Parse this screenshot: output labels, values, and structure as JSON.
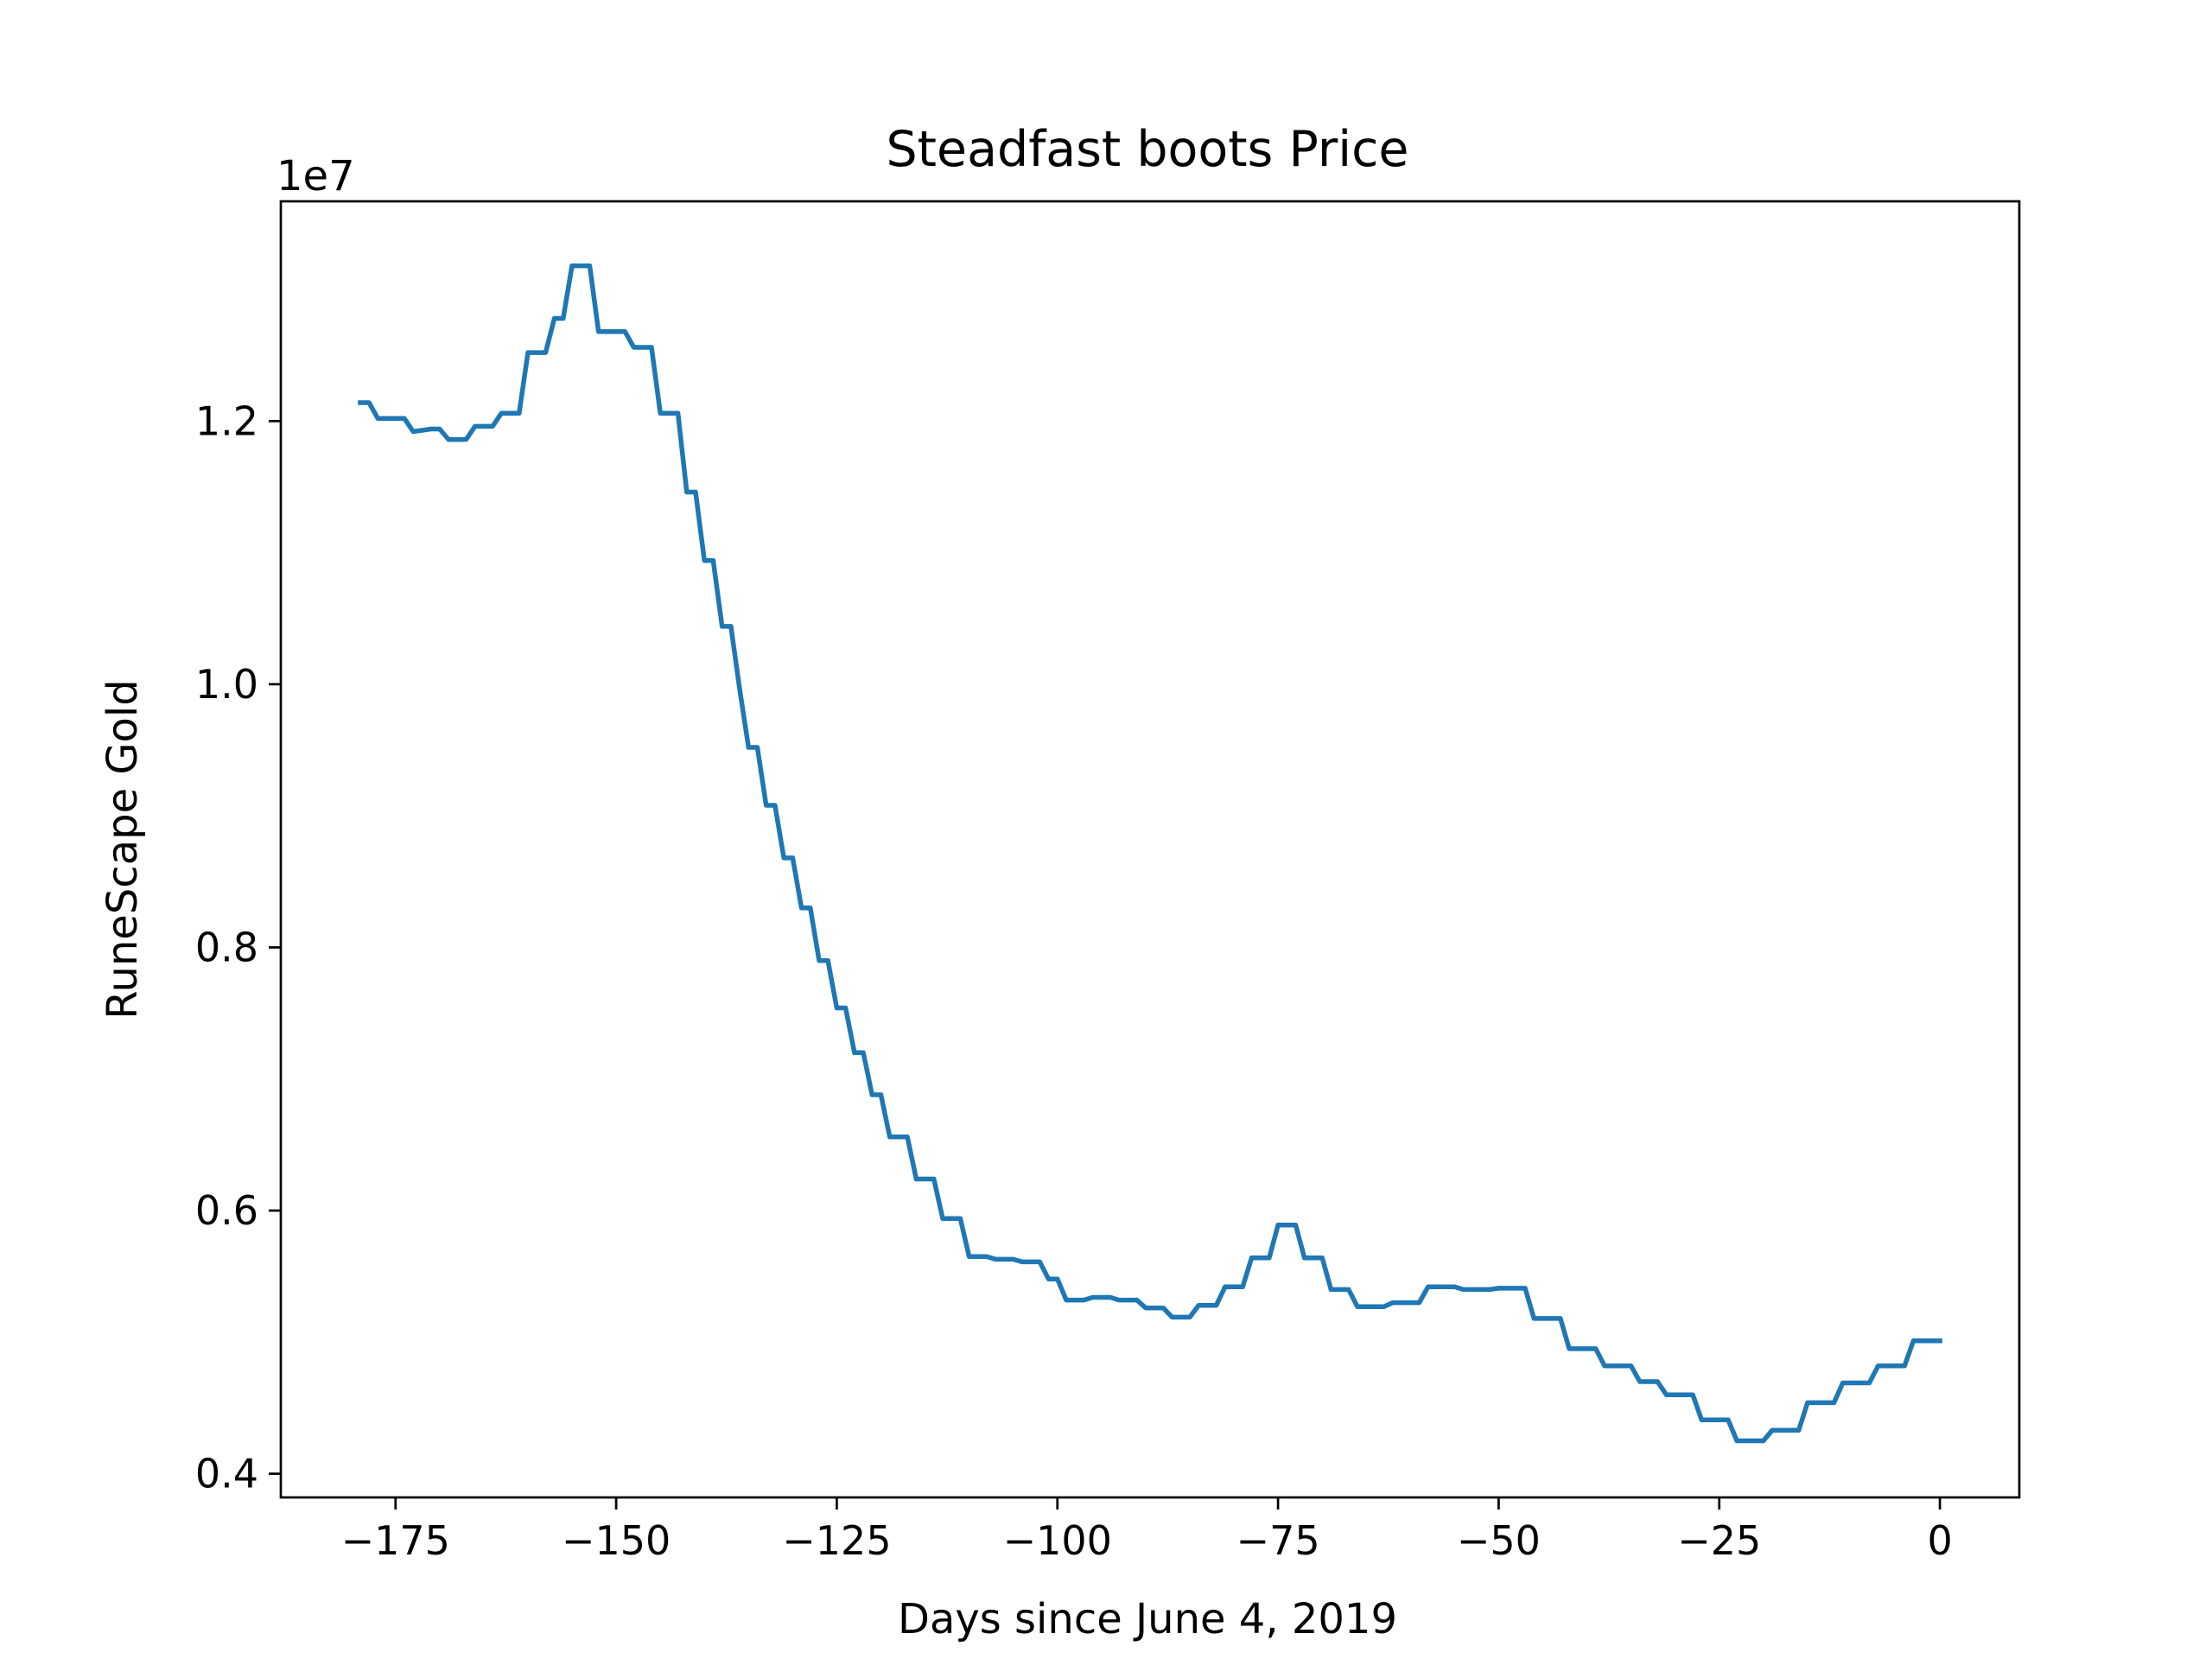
{
  "chart_data": {
    "type": "line",
    "title": "Steadfast boots Price",
    "xlabel": "Days since June 4, 2019",
    "ylabel": "RuneScape Gold",
    "y_offset_label": "1e7",
    "y_scale": 10000000,
    "xlim": [
      -188,
      9
    ],
    "ylim": [
      3820000,
      13670000
    ],
    "x_ticks": [
      -175,
      -150,
      -125,
      -100,
      -75,
      -50,
      -25,
      0
    ],
    "x_tick_labels": [
      "−175",
      "−150",
      "−125",
      "−100",
      "−75",
      "−50",
      "−25",
      "0"
    ],
    "y_ticks": [
      4000000,
      6000000,
      8000000,
      10000000,
      12000000
    ],
    "y_tick_labels": [
      "0.4",
      "0.6",
      "0.8",
      "1.0",
      "1.2"
    ],
    "grid": false,
    "series": [
      {
        "color": "#1f77b4",
        "points": [
          [
            -179,
            12140000
          ],
          [
            -178,
            12140000
          ],
          [
            -177,
            12020000
          ],
          [
            -174,
            12020000
          ],
          [
            -173,
            11920000
          ],
          [
            -171,
            11940000
          ],
          [
            -170,
            11940000
          ],
          [
            -169,
            11860000
          ],
          [
            -167,
            11860000
          ],
          [
            -166,
            11960000
          ],
          [
            -164,
            11960000
          ],
          [
            -163,
            12060000
          ],
          [
            -161,
            12060000
          ],
          [
            -160,
            12520000
          ],
          [
            -158,
            12520000
          ],
          [
            -157,
            12780000
          ],
          [
            -156,
            12780000
          ],
          [
            -155,
            13180000
          ],
          [
            -153,
            13180000
          ],
          [
            -152,
            12680000
          ],
          [
            -149,
            12680000
          ],
          [
            -148,
            12560000
          ],
          [
            -146,
            12560000
          ],
          [
            -145,
            12060000
          ],
          [
            -143,
            12060000
          ],
          [
            -142,
            11460000
          ],
          [
            -141,
            11460000
          ],
          [
            -140,
            10940000
          ],
          [
            -139,
            10940000
          ],
          [
            -138,
            10440000
          ],
          [
            -137,
            10440000
          ],
          [
            -136,
            9960000
          ],
          [
            -135,
            9520000
          ],
          [
            -134,
            9520000
          ],
          [
            -133,
            9080000
          ],
          [
            -132,
            9080000
          ],
          [
            -131,
            8680000
          ],
          [
            -130,
            8680000
          ],
          [
            -129,
            8300000
          ],
          [
            -128,
            8300000
          ],
          [
            -127,
            7900000
          ],
          [
            -126,
            7900000
          ],
          [
            -125,
            7540000
          ],
          [
            -124,
            7540000
          ],
          [
            -123,
            7200000
          ],
          [
            -122,
            7200000
          ],
          [
            -121,
            6880000
          ],
          [
            -120,
            6880000
          ],
          [
            -119,
            6560000
          ],
          [
            -117,
            6560000
          ],
          [
            -116,
            6240000
          ],
          [
            -114,
            6240000
          ],
          [
            -113,
            5940000
          ],
          [
            -111,
            5940000
          ],
          [
            -110,
            5650000
          ],
          [
            -108,
            5650000
          ],
          [
            -107,
            5630000
          ],
          [
            -105,
            5630000
          ],
          [
            -104,
            5610000
          ],
          [
            -102,
            5610000
          ],
          [
            -101,
            5480000
          ],
          [
            -100,
            5480000
          ],
          [
            -99,
            5320000
          ],
          [
            -97,
            5320000
          ],
          [
            -96,
            5340000
          ],
          [
            -94,
            5340000
          ],
          [
            -93,
            5320000
          ],
          [
            -91,
            5320000
          ],
          [
            -90,
            5260000
          ],
          [
            -88,
            5260000
          ],
          [
            -87,
            5190000
          ],
          [
            -85,
            5190000
          ],
          [
            -84,
            5280000
          ],
          [
            -82,
            5280000
          ],
          [
            -81,
            5420000
          ],
          [
            -79,
            5420000
          ],
          [
            -78,
            5640000
          ],
          [
            -76,
            5640000
          ],
          [
            -75,
            5890000
          ],
          [
            -73,
            5890000
          ],
          [
            -72,
            5640000
          ],
          [
            -70,
            5640000
          ],
          [
            -69,
            5400000
          ],
          [
            -67,
            5400000
          ],
          [
            -66,
            5270000
          ],
          [
            -63,
            5270000
          ],
          [
            -62,
            5300000
          ],
          [
            -59,
            5300000
          ],
          [
            -58,
            5420000
          ],
          [
            -55,
            5420000
          ],
          [
            -54,
            5400000
          ],
          [
            -51,
            5400000
          ],
          [
            -50,
            5410000
          ],
          [
            -47,
            5410000
          ],
          [
            -46,
            5180000
          ],
          [
            -43,
            5180000
          ],
          [
            -42,
            4950000
          ],
          [
            -39,
            4950000
          ],
          [
            -38,
            4820000
          ],
          [
            -35,
            4820000
          ],
          [
            -34,
            4700000
          ],
          [
            -32,
            4700000
          ],
          [
            -31,
            4600000
          ],
          [
            -28,
            4600000
          ],
          [
            -27,
            4410000
          ],
          [
            -24,
            4410000
          ],
          [
            -23,
            4250000
          ],
          [
            -20,
            4250000
          ],
          [
            -19,
            4330000
          ],
          [
            -16,
            4330000
          ],
          [
            -15,
            4540000
          ],
          [
            -12,
            4540000
          ],
          [
            -11,
            4690000
          ],
          [
            -8,
            4690000
          ],
          [
            -7,
            4820000
          ],
          [
            -4,
            4820000
          ],
          [
            -3,
            5010000
          ],
          [
            0,
            5010000
          ]
        ]
      }
    ]
  }
}
